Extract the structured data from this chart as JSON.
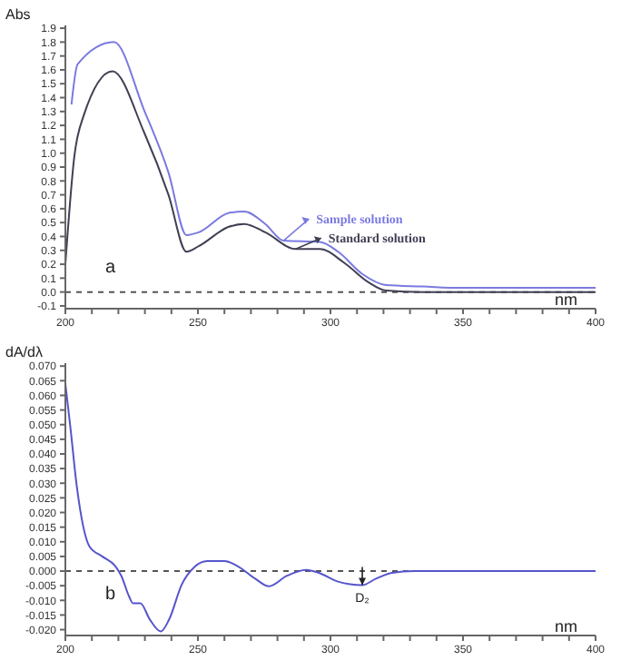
{
  "chart_data": [
    {
      "type": "line",
      "xlabel": "nm",
      "ylabel": "Abs",
      "annotations": [
        "a"
      ],
      "legend": "right",
      "xlim": [
        200,
        400
      ],
      "xticks": [
        200,
        {
          "value": 210,
          "label": null
        },
        {
          "value": 220,
          "label": null
        },
        {
          "value": 230,
          "label": null
        },
        {
          "value": 240,
          "label": null
        },
        250,
        {
          "value": 260,
          "label": null
        },
        {
          "value": 270,
          "label": null
        },
        {
          "value": 280,
          "label": null
        },
        {
          "value": 290,
          "label": null
        },
        300,
        {
          "value": 310,
          "label": null
        },
        {
          "value": 320,
          "label": null
        },
        {
          "value": 330,
          "label": null
        },
        {
          "value": 340,
          "label": null
        },
        350,
        {
          "value": 360,
          "label": null
        },
        {
          "value": 370,
          "label": null
        },
        {
          "value": 380,
          "label": null
        },
        {
          "value": 390,
          "label": null
        },
        400
      ],
      "ylim": [
        -0.12,
        1.92
      ],
      "yticks": [
        -0.1,
        {
          "value": 0,
          "label": "0.0"
        },
        0.1,
        0.2,
        0.3,
        0.4,
        0.5,
        0.6,
        0.7,
        0.8,
        0.9,
        {
          "value": 1,
          "label": "1.0"
        },
        1.1,
        1.2,
        1.3,
        1.4,
        1.5,
        1.6,
        1.7,
        1.8,
        1.9
      ],
      "ref_lines": [
        {
          "axis": "y",
          "value": 0,
          "color": "#555555",
          "line_style": "dashed"
        }
      ],
      "series": [
        {
          "name": "Sample solution",
          "color": "#7a7ae0",
          "x": [
            202.3,
            204.6,
            218.3,
            229.7,
            238.9,
            245.7,
            250.3,
            261.7,
            267.4,
            275.4,
            282.3,
            296,
            302.9,
            312,
            321,
            334.9,
            348.6,
            400
          ],
          "values": [
            1.35,
            1.64,
            1.8,
            1.31,
            0.86,
            0.41,
            0.43,
            0.57,
            0.58,
            0.49,
            0.37,
            0.36,
            0.29,
            0.13,
            0.05,
            0.04,
            0.03,
            0.03
          ]
        },
        {
          "name": "Standard solution",
          "color": "#404055",
          "x": [
            200,
            203.4,
            206.9,
            217.8,
            229.7,
            238.9,
            245.7,
            250.3,
            261.7,
            267.4,
            275.4,
            286.9,
            296,
            305.2,
            314.3,
            321,
            334.9,
            400
          ],
          "values": [
            0.2,
            0.98,
            1.27,
            1.59,
            1.15,
            0.7,
            0.29,
            0.33,
            0.47,
            0.49,
            0.43,
            0.31,
            0.31,
            0.21,
            0.07,
            0.01,
            0,
            0
          ]
        }
      ]
    },
    {
      "type": "line",
      "xlabel": "nm",
      "ylabel": "dA/dλ",
      "annotations": [
        "b",
        {
          "text": "D₂",
          "x": 312,
          "y": -0.0048
        }
      ],
      "xlim": [
        200,
        400
      ],
      "xticks": [
        200,
        {
          "value": 210,
          "label": null
        },
        {
          "value": 220,
          "label": null
        },
        {
          "value": 230,
          "label": null
        },
        {
          "value": 240,
          "label": null
        },
        250,
        {
          "value": 260,
          "label": null
        },
        {
          "value": 270,
          "label": null
        },
        {
          "value": 280,
          "label": null
        },
        {
          "value": 290,
          "label": null
        },
        300,
        {
          "value": 310,
          "label": null
        },
        {
          "value": 320,
          "label": null
        },
        {
          "value": 330,
          "label": null
        },
        {
          "value": 340,
          "label": null
        },
        350,
        {
          "value": 360,
          "label": null
        },
        {
          "value": 370,
          "label": null
        },
        {
          "value": 380,
          "label": null
        },
        {
          "value": 390,
          "label": null
        },
        400
      ],
      "ylim": [
        -0.022,
        0.071
      ],
      "yticks": [
        {
          "value": -0.02,
          "label": "-0.020"
        },
        {
          "value": -0.015,
          "label": "-0.015"
        },
        {
          "value": -0.01,
          "label": "-0.010"
        },
        {
          "value": -0.005,
          "label": "-0.005"
        },
        {
          "value": 0,
          "label": "0.000"
        },
        {
          "value": 0.005,
          "label": "0.005"
        },
        {
          "value": 0.01,
          "label": "0.010"
        },
        {
          "value": 0.015,
          "label": "0.015"
        },
        {
          "value": 0.02,
          "label": "0.020"
        },
        {
          "value": 0.025,
          "label": "0.025"
        },
        {
          "value": 0.03,
          "label": "0.030"
        },
        {
          "value": 0.035,
          "label": "0.035"
        },
        {
          "value": 0.04,
          "label": "0.040"
        },
        {
          "value": 0.045,
          "label": "0.045"
        },
        {
          "value": 0.05,
          "label": "0.050"
        },
        {
          "value": 0.055,
          "label": "0.055"
        },
        {
          "value": 0.06,
          "label": "0.060"
        },
        {
          "value": 0.065,
          "label": "0.065"
        },
        {
          "value": 0.07,
          "label": "0.070"
        }
      ],
      "ref_lines": [
        {
          "axis": "y",
          "value": 0,
          "color": "#555555",
          "line_style": "dashed"
        }
      ],
      "series": [
        {
          "color": "#5555cc",
          "x": [
            200,
            201.9,
            204.3,
            206.7,
            209.1,
            213.9,
            218.7,
            221.1,
            224,
            225.5,
            228.3,
            231.9,
            236,
            239.1,
            243.9,
            248.7,
            253.5,
            260,
            265.5,
            271.6,
            276.8,
            283.6,
            290.8,
            295.6,
            302.8,
            311.9,
            317.2,
            323.2,
            331.6,
            400
          ],
          "values": [
            0.064,
            0.049,
            0.029,
            0.0154,
            0.0084,
            0.005,
            0.0018,
            -0.0016,
            -0.0086,
            -0.011,
            -0.011,
            -0.0166,
            -0.0206,
            -0.0166,
            -0.0046,
            0.0014,
            0.0034,
            0.0034,
            0.0014,
            -0.0026,
            -0.0052,
            -0.0016,
            0.0004,
            -0.0006,
            -0.0036,
            -0.0048,
            -0.0026,
            -0.0006,
            0,
            0
          ]
        }
      ]
    }
  ]
}
